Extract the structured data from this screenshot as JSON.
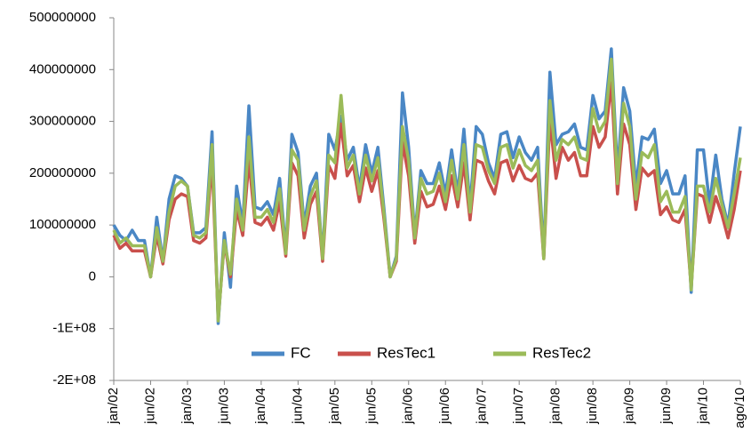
{
  "chart_data": {
    "type": "line",
    "categories": [
      "jan/02",
      null,
      null,
      null,
      null,
      null,
      "jun/02",
      null,
      null,
      null,
      null,
      null,
      "jan/03",
      null,
      null,
      null,
      null,
      null,
      "jun/03",
      null,
      null,
      null,
      null,
      null,
      "jan/04",
      null,
      null,
      null,
      null,
      null,
      "jun/04",
      null,
      null,
      null,
      null,
      null,
      "jan/05",
      null,
      null,
      null,
      null,
      null,
      "jun/05",
      null,
      null,
      null,
      null,
      null,
      "jan/06",
      null,
      null,
      null,
      null,
      null,
      "jun/06",
      null,
      null,
      null,
      null,
      null,
      "jan/07",
      null,
      null,
      null,
      null,
      null,
      "jun/07",
      null,
      null,
      null,
      null,
      null,
      "jan/08",
      null,
      null,
      null,
      null,
      null,
      "jun/08",
      null,
      null,
      null,
      null,
      null,
      "jan/09",
      null,
      null,
      null,
      null,
      null,
      "jun/09",
      null,
      null,
      null,
      null,
      null,
      "jan/10",
      null,
      null,
      null,
      null,
      null,
      "ago/10"
    ],
    "series": [
      {
        "name": "FC",
        "color": "#4a87c5",
        "values": [
          100000000.0,
          80000000.0,
          70000000.0,
          90000000.0,
          70000000.0,
          70000000.0,
          0,
          115000000.0,
          30000000.0,
          150000000.0,
          195000000.0,
          190000000.0,
          175000000.0,
          85000000.0,
          85000000.0,
          95000000.0,
          280000000.0,
          -90000000.0,
          85000000.0,
          -20000000.0,
          175000000.0,
          100000000.0,
          330000000.0,
          135000000.0,
          130000000.0,
          145000000.0,
          120000000.0,
          190000000.0,
          50000000.0,
          275000000.0,
          240000000.0,
          100000000.0,
          175000000.0,
          200000000.0,
          35000000.0,
          275000000.0,
          245000000.0,
          310000000.0,
          225000000.0,
          250000000.0,
          170000000.0,
          255000000.0,
          200000000.0,
          250000000.0,
          130000000.0,
          0,
          40000000.0,
          355000000.0,
          250000000.0,
          80000000.0,
          205000000.0,
          180000000.0,
          180000000.0,
          220000000.0,
          160000000.0,
          245000000.0,
          160000000.0,
          285000000.0,
          135000000.0,
          290000000.0,
          275000000.0,
          220000000.0,
          190000000.0,
          275000000.0,
          280000000.0,
          230000000.0,
          270000000.0,
          240000000.0,
          225000000.0,
          250000000.0,
          40000000.0,
          395000000.0,
          255000000.0,
          275000000.0,
          280000000.0,
          295000000.0,
          250000000.0,
          245000000.0,
          350000000.0,
          305000000.0,
          320000000.0,
          440000000.0,
          200000000.0,
          365000000.0,
          320000000.0,
          175000000.0,
          270000000.0,
          265000000.0,
          285000000.0,
          180000000.0,
          205000000.0,
          160000000.0,
          160000000.0,
          195000000.0,
          -30000000.0,
          245000000.0,
          245000000.0,
          140000000.0,
          235000000.0,
          150000000.0,
          100000000.0,
          200000000.0,
          290000000.0
        ]
      },
      {
        "name": "ResTec1",
        "color": "#c9504c",
        "values": [
          80000000.0,
          55000000.0,
          65000000.0,
          50000000.0,
          50000000.0,
          50000000.0,
          0,
          80000000.0,
          25000000.0,
          110000000.0,
          150000000.0,
          160000000.0,
          155000000.0,
          70000000.0,
          65000000.0,
          75000000.0,
          225000000.0,
          -80000000.0,
          65000000.0,
          0,
          130000000.0,
          80000000.0,
          225000000.0,
          105000000.0,
          100000000.0,
          115000000.0,
          90000000.0,
          145000000.0,
          40000000.0,
          220000000.0,
          195000000.0,
          75000000.0,
          140000000.0,
          165000000.0,
          30000000.0,
          215000000.0,
          190000000.0,
          295000000.0,
          195000000.0,
          215000000.0,
          145000000.0,
          210000000.0,
          165000000.0,
          205000000.0,
          110000000.0,
          0,
          30000000.0,
          260000000.0,
          195000000.0,
          65000000.0,
          165000000.0,
          135000000.0,
          140000000.0,
          175000000.0,
          130000000.0,
          195000000.0,
          135000000.0,
          220000000.0,
          110000000.0,
          225000000.0,
          220000000.0,
          185000000.0,
          160000000.0,
          220000000.0,
          225000000.0,
          185000000.0,
          215000000.0,
          190000000.0,
          185000000.0,
          200000000.0,
          35000000.0,
          305000000.0,
          190000000.0,
          250000000.0,
          225000000.0,
          240000000.0,
          195000000.0,
          195000000.0,
          290000000.0,
          250000000.0,
          270000000.0,
          375000000.0,
          160000000.0,
          295000000.0,
          255000000.0,
          130000000.0,
          210000000.0,
          195000000.0,
          205000000.0,
          120000000.0,
          135000000.0,
          110000000.0,
          105000000.0,
          130000000.0,
          -20000000.0,
          160000000.0,
          155000000.0,
          105000000.0,
          155000000.0,
          120000000.0,
          75000000.0,
          130000000.0,
          205000000.0
        ]
      },
      {
        "name": "ResTec2",
        "color": "#9bbb59",
        "values": [
          90000000.0,
          65000000.0,
          75000000.0,
          60000000.0,
          60000000.0,
          60000000.0,
          0,
          95000000.0,
          30000000.0,
          125000000.0,
          175000000.0,
          185000000.0,
          175000000.0,
          80000000.0,
          75000000.0,
          85000000.0,
          255000000.0,
          -85000000.0,
          70000000.0,
          5000000.0,
          150000000.0,
          90000000.0,
          270000000.0,
          115000000.0,
          115000000.0,
          130000000.0,
          105000000.0,
          170000000.0,
          45000000.0,
          245000000.0,
          225000000.0,
          90000000.0,
          155000000.0,
          185000000.0,
          35000000.0,
          235000000.0,
          220000000.0,
          350000000.0,
          210000000.0,
          235000000.0,
          160000000.0,
          235000000.0,
          185000000.0,
          230000000.0,
          120000000.0,
          0,
          35000000.0,
          290000000.0,
          225000000.0,
          75000000.0,
          190000000.0,
          160000000.0,
          165000000.0,
          200000000.0,
          145000000.0,
          225000000.0,
          150000000.0,
          255000000.0,
          125000000.0,
          255000000.0,
          250000000.0,
          205000000.0,
          180000000.0,
          250000000.0,
          255000000.0,
          210000000.0,
          245000000.0,
          215000000.0,
          205000000.0,
          225000000.0,
          35000000.0,
          340000000.0,
          225000000.0,
          265000000.0,
          255000000.0,
          270000000.0,
          230000000.0,
          225000000.0,
          325000000.0,
          280000000.0,
          300000000.0,
          420000000.0,
          180000000.0,
          335000000.0,
          290000000.0,
          150000000.0,
          240000000.0,
          230000000.0,
          255000000.0,
          145000000.0,
          165000000.0,
          125000000.0,
          125000000.0,
          155000000.0,
          -25000000.0,
          175000000.0,
          175000000.0,
          125000000.0,
          190000000.0,
          140000000.0,
          95000000.0,
          160000000.0,
          230000000.0
        ]
      }
    ],
    "ylim": [
      -200000000,
      500000000
    ],
    "yticks": [
      {
        "value": -200000000,
        "label": "-2E+08"
      },
      {
        "value": -100000000,
        "label": "-1E+08"
      },
      0,
      100000000,
      200000000,
      300000000,
      400000000,
      500000000
    ],
    "legend": "bottom"
  }
}
